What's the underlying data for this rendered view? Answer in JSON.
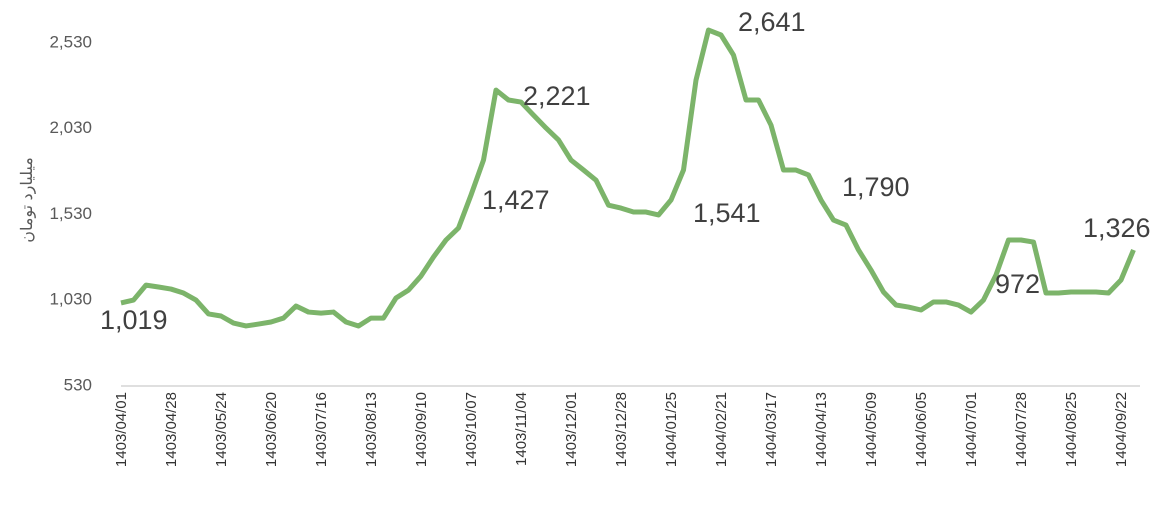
{
  "chart_data": {
    "type": "line",
    "y_label": "میلیارد تومان",
    "categories": [
      "1403/04/01",
      null,
      null,
      null,
      "1403/04/28",
      null,
      null,
      null,
      "1403/05/24",
      null,
      null,
      null,
      "1403/06/20",
      null,
      null,
      null,
      "1403/07/16",
      null,
      null,
      null,
      "1403/08/13",
      null,
      null,
      null,
      "1403/09/10",
      null,
      null,
      null,
      "1403/10/07",
      null,
      null,
      null,
      "1403/11/04",
      null,
      null,
      null,
      "1403/12/01",
      null,
      null,
      null,
      "1403/12/28",
      null,
      null,
      null,
      "1404/01/25",
      null,
      null,
      null,
      "1404/02/21",
      null,
      null,
      null,
      "1404/03/17",
      null,
      null,
      null,
      "1404/04/13",
      null,
      null,
      null,
      "1404/05/09",
      null,
      null,
      null,
      "1404/06/05",
      null,
      null,
      null,
      "1404/07/01",
      null,
      null,
      null,
      "1404/07/28",
      null,
      null,
      null,
      "1404/08/25",
      null,
      null,
      null,
      "1404/09/22",
      null
    ],
    "series": [
      {
        "color": "#7cb46a",
        "values": [
          1014,
          1031,
          1118,
          1107,
          1095,
          1072,
          1031,
          950,
          938,
          897,
          880,
          891,
          903,
          926,
          996,
          961,
          955,
          961,
          903,
          880,
          926,
          926,
          1043,
          1089,
          1171,
          1282,
          1381,
          1451,
          1643,
          1847,
          2255,
          2197,
          2185,
          2109,
          2034,
          1964,
          1847,
          1789,
          1730,
          1584,
          1567,
          1544,
          1544,
          1527,
          1614,
          1789,
          2313,
          2605,
          2576,
          2459,
          2197,
          2197,
          2051,
          1789,
          1789,
          1760,
          1614,
          1497,
          1468,
          1323,
          1206,
          1078,
          1002,
          990,
          973,
          1020,
          1020,
          1002,
          961,
          1031,
          1177,
          1381,
          1381,
          1369,
          1072,
          1072,
          1078,
          1078,
          1078,
          1072,
          1148,
          1323
        ]
      }
    ],
    "annotations": [
      "1,019",
      "1,427",
      "2,221",
      "1,541",
      "2,641",
      "1,790",
      "972",
      "1,326"
    ],
    "ylim": [
      530,
      2780
    ],
    "yticks": [
      530,
      {
        "value": 1030,
        "label": "1,030"
      },
      {
        "value": 1530,
        "label": "1,530"
      },
      {
        "value": 2030,
        "label": "2,030"
      },
      {
        "value": 2530,
        "label": "2,530"
      }
    ],
    "grid": false
  }
}
